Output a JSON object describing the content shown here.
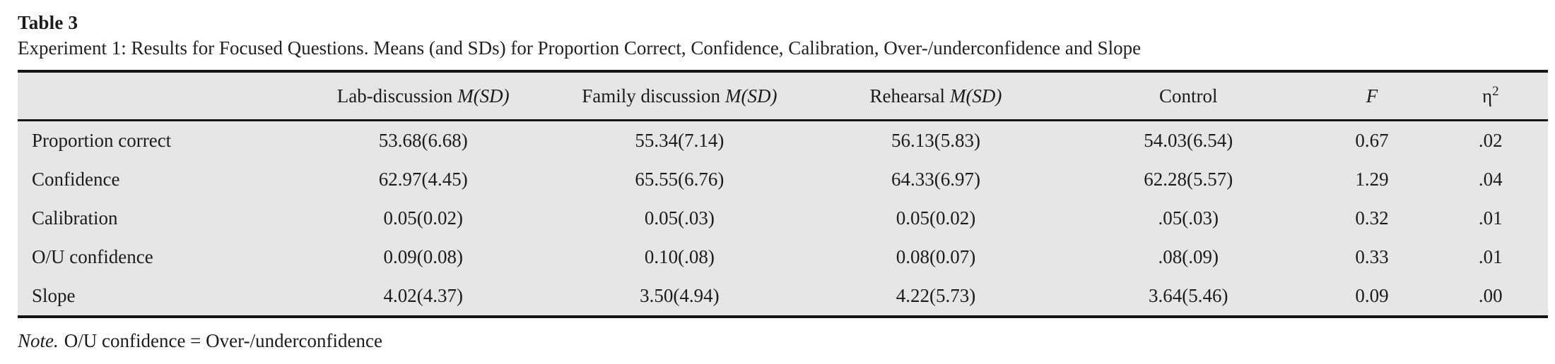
{
  "title": "Table 3",
  "caption": "Experiment 1: Results for Focused Questions. Means (and SDs) for Proportion Correct, Confidence, Calibration, Over-/underconfidence and Slope",
  "colors": {
    "table_background": "#e6e6e6",
    "rule": "#141414",
    "text": "#1c1c1c"
  },
  "header": {
    "cols": [
      {
        "name": "Lab-discussion",
        "stat": "M(SD)"
      },
      {
        "name": "Family discussion",
        "stat": "M(SD)"
      },
      {
        "name": "Rehearsal",
        "stat": "M(SD)"
      },
      {
        "name": "Control"
      },
      {
        "name": "F"
      },
      {
        "name": "η",
        "sup": "2"
      }
    ]
  },
  "rows": [
    {
      "label": "Proportion correct",
      "values": [
        "53.68(6.68)",
        "55.34(7.14)",
        "56.13(5.83)",
        "54.03(6.54)",
        "0.67",
        ".02"
      ]
    },
    {
      "label": "Confidence",
      "values": [
        "62.97(4.45)",
        "65.55(6.76)",
        "64.33(6.97)",
        "62.28(5.57)",
        "1.29",
        ".04"
      ]
    },
    {
      "label": "Calibration",
      "values": [
        "0.05(0.02)",
        "0.05(.03)",
        "0.05(0.02)",
        ".05(.03)",
        "0.32",
        ".01"
      ]
    },
    {
      "label": "O/U confidence",
      "values": [
        "0.09(0.08)",
        "0.10(.08)",
        "0.08(0.07)",
        ".08(.09)",
        "0.33",
        ".01"
      ]
    },
    {
      "label": "Slope",
      "values": [
        "4.02(4.37)",
        "3.50(4.94)",
        "4.22(5.73)",
        "3.64(5.46)",
        "0.09",
        ".00"
      ]
    }
  ],
  "note": {
    "label": "Note.",
    "text": "O/U confidence = Over-/underconfidence"
  }
}
